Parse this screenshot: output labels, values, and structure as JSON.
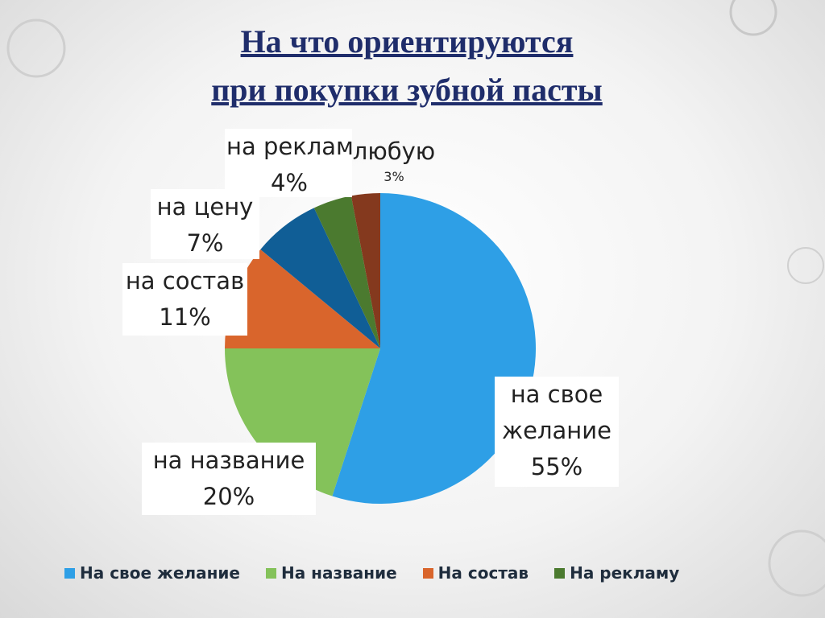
{
  "title": [
    "На что ориентируются",
    "при покупки зубной пасты"
  ],
  "chart_data": {
    "type": "pie",
    "categories": [
      "на свое желание",
      "на название",
      "на состав",
      "на цену",
      "на реклам",
      "любую"
    ],
    "values": [
      55,
      20,
      11,
      7,
      4,
      3
    ],
    "value_labels": [
      "55%",
      "20%",
      "11%",
      "7%",
      "4%",
      "3%"
    ],
    "colors": [
      "#2e9fe6",
      "#84c25a",
      "#d9652c",
      "#105e96",
      "#4b7a2f",
      "#84391e"
    ],
    "legend": [
      {
        "name": "На свое желание",
        "color": "#2e9fe6"
      },
      {
        "name": "На название",
        "color": "#84c25a"
      },
      {
        "name": "На состав",
        "color": "#d9652c"
      },
      {
        "name": "На рекламу",
        "color": "#4b7a2f"
      }
    ]
  }
}
